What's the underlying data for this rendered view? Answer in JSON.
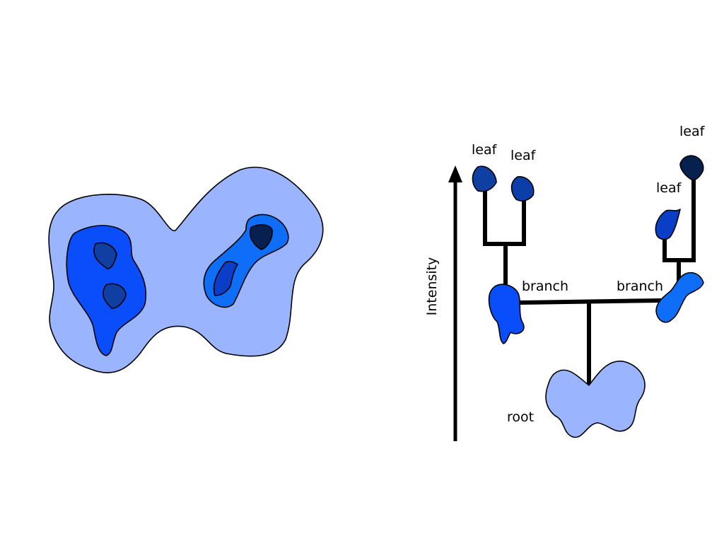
{
  "labels": {
    "axis": "Intensity",
    "root": "root",
    "branch_left": "branch",
    "branch_right": "branch",
    "leaf_1": "leaf",
    "leaf_2": "leaf",
    "leaf_3": "leaf",
    "leaf_4": "leaf"
  },
  "colors": {
    "root": "#9ab5fd",
    "branch_left": "#0a4dfa",
    "branch_right": "#0f6ef8",
    "leaf_left_a": "#0f3fa3",
    "leaf_left_b": "#0c3ea9",
    "leaf_right_small": "#0b3ec7",
    "leaf_right_top": "#06204f",
    "outline": "#000000"
  }
}
